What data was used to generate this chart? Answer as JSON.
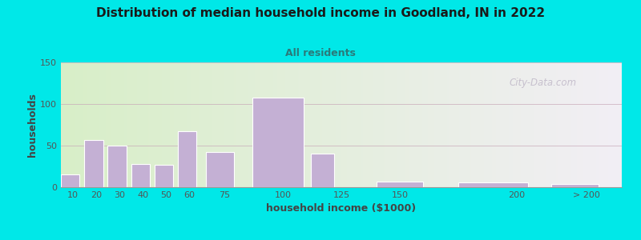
{
  "title": "Distribution of median household income in Goodland, IN in 2022",
  "subtitle": "All residents",
  "xlabel": "household income ($1000)",
  "ylabel": "households",
  "bar_lefts": [
    5,
    15,
    25,
    35,
    45,
    55,
    67,
    87,
    112,
    140,
    175,
    215
  ],
  "bar_widths": [
    8,
    8,
    8,
    8,
    8,
    8,
    12,
    22,
    10,
    20,
    30,
    20
  ],
  "bar_heights": [
    15,
    57,
    50,
    28,
    27,
    67,
    42,
    108,
    40,
    7,
    6,
    4
  ],
  "bar_color": "#c4b0d4",
  "bar_edgecolor": "#ffffff",
  "bg_color_left": "#d8eec8",
  "bg_color_right": "#f2eff5",
  "outer_bg": "#00e8e8",
  "title_color": "#1a1a1a",
  "subtitle_color": "#2a7a7a",
  "axis_label_color": "#444444",
  "tick_color": "#555555",
  "grid_color": "#c8a8b8",
  "yticks": [
    0,
    50,
    100,
    150
  ],
  "xtick_positions": [
    10,
    20,
    30,
    40,
    50,
    60,
    75,
    100,
    125,
    150,
    200,
    230
  ],
  "xtick_labels": [
    "10",
    "20",
    "30",
    "40",
    "50",
    "60",
    "75",
    "100",
    "125",
    "150",
    "200",
    "> 200"
  ],
  "xlim": [
    5,
    245
  ],
  "ylim": [
    0,
    150
  ],
  "watermark": "City-Data.com",
  "figsize": [
    8.0,
    3.0
  ],
  "dpi": 100
}
